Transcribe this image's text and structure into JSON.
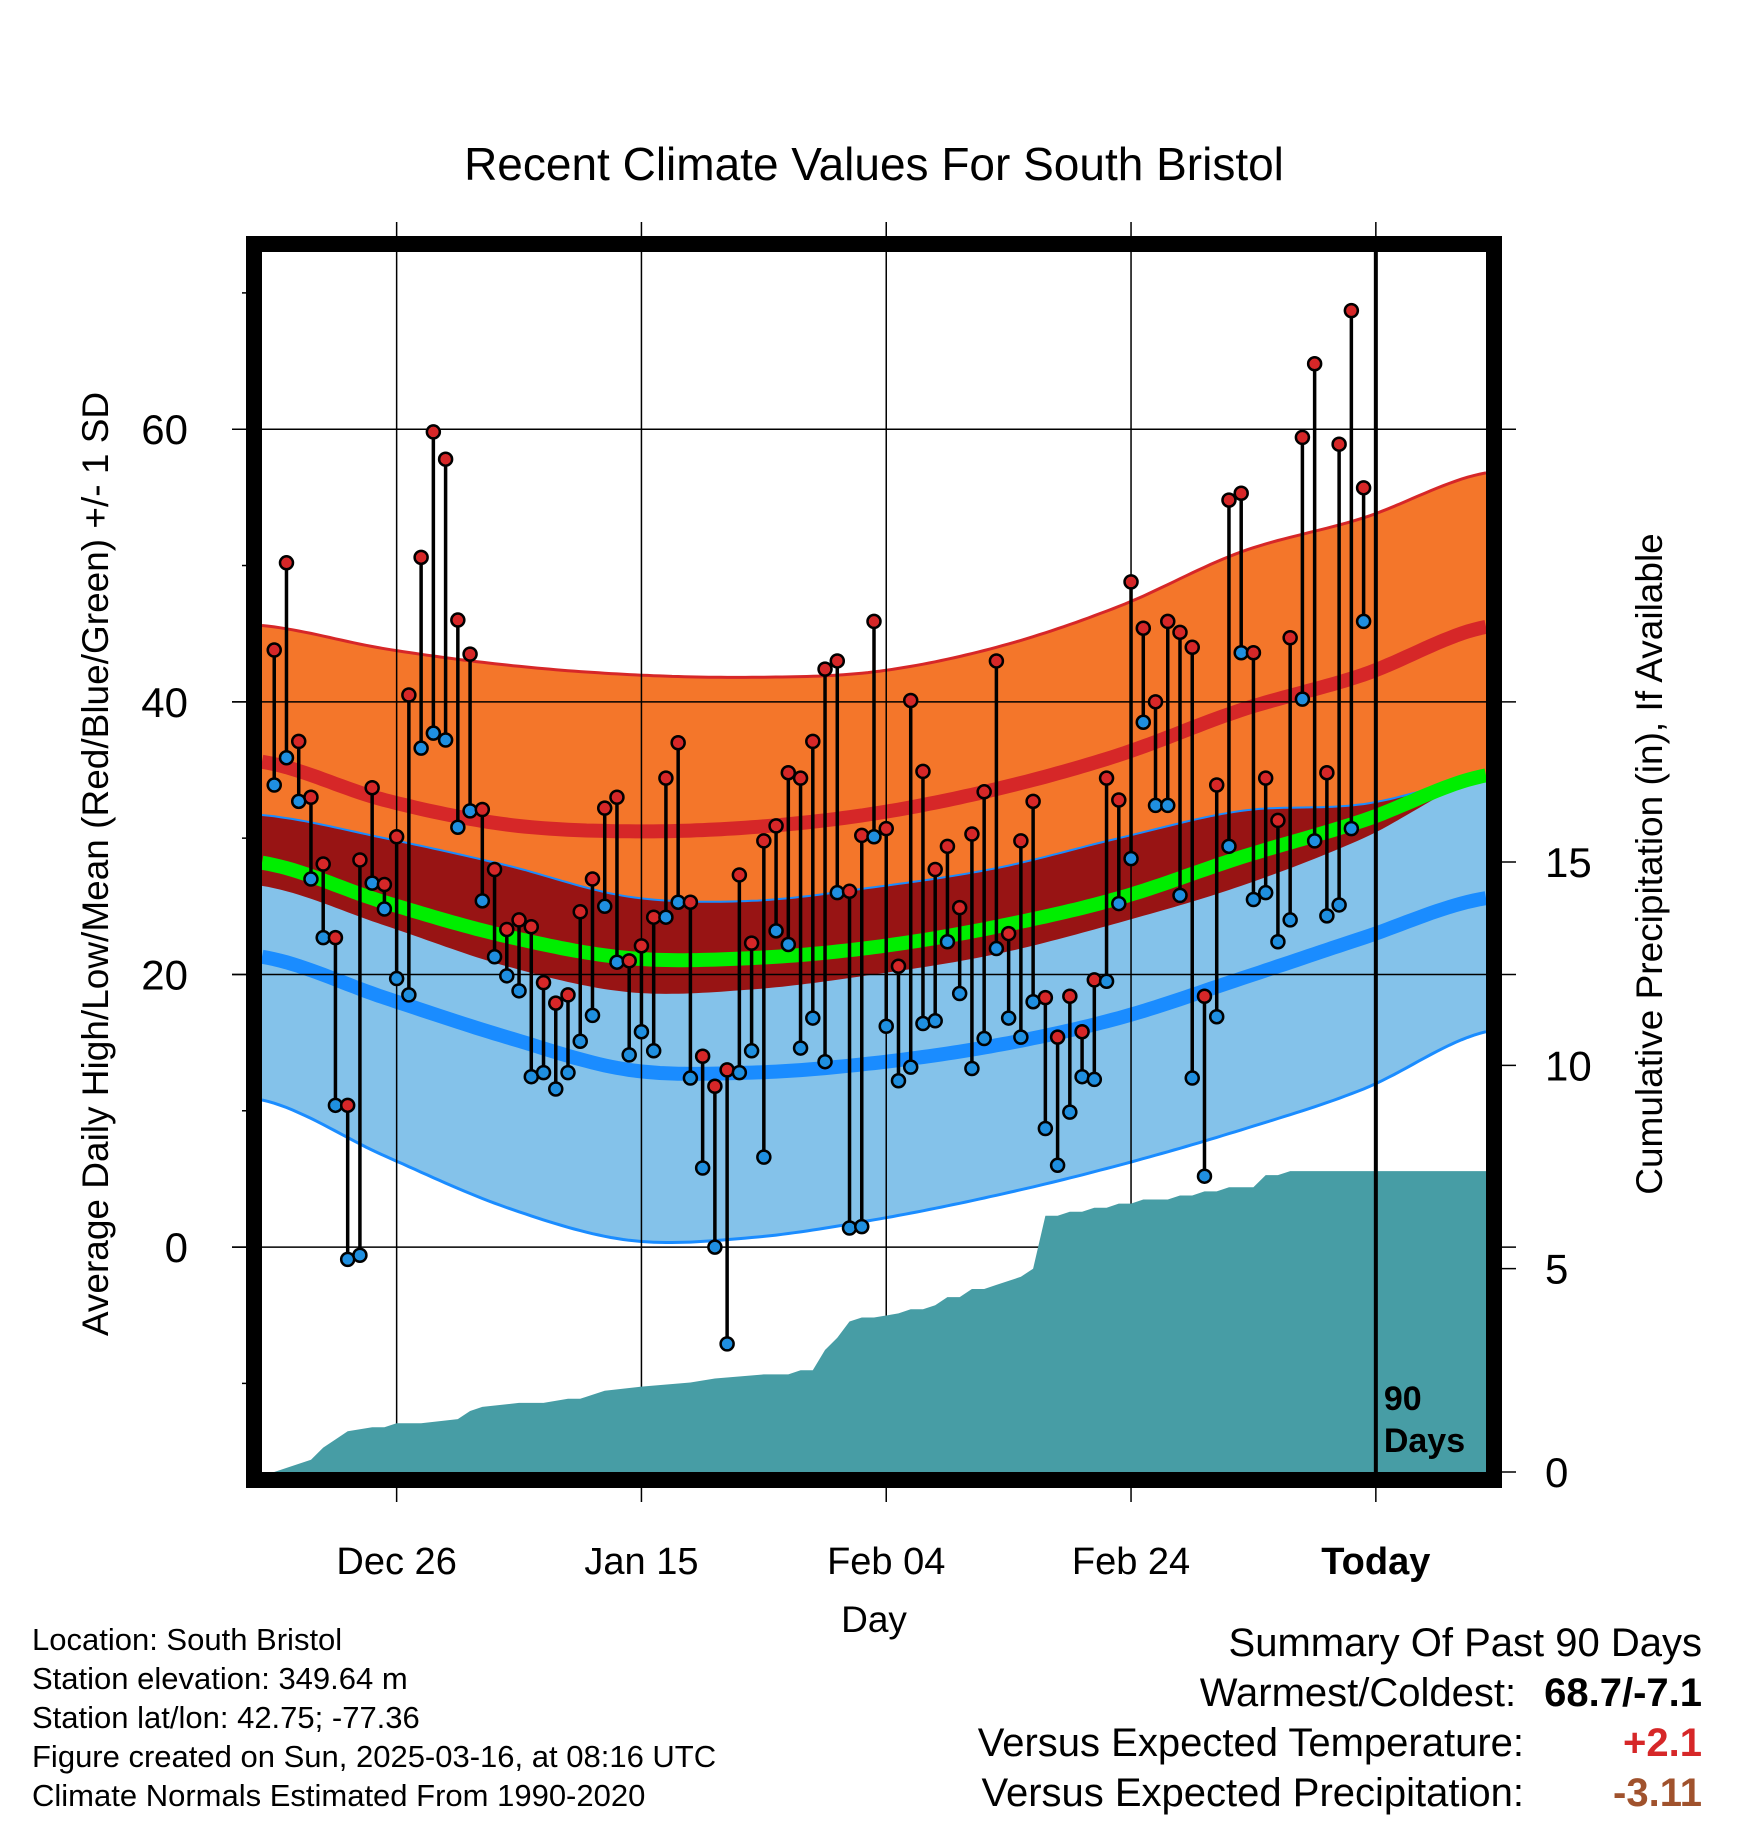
{
  "chart_data": {
    "type": "line",
    "title": "Recent Climate Values For South Bristol",
    "xlabel": "Day",
    "ylabel": "Average Daily High/Low/Mean (Red/Blue/Green) +/- 1 SD",
    "y2label": "Cumulative Precipitation (in), If Available",
    "x_ticks": [
      "Dec 26",
      "Jan 15",
      "Feb 04",
      "Feb 24",
      "Today"
    ],
    "x_tick_days": [
      10,
      30,
      50,
      70,
      90
    ],
    "xlim": [
      -1,
      99
    ],
    "ylim": [
      -16.5,
      73
    ],
    "y_ticks": [
      "0",
      "20",
      "40",
      "60"
    ],
    "y2lim": [
      0,
      30
    ],
    "y2_ticks": [
      "0",
      "5",
      "10",
      "15"
    ],
    "today_label": "90 Days",
    "grid": true,
    "normals": {
      "days": [
        -1,
        9,
        19,
        29,
        39,
        49,
        59,
        69,
        79,
        89,
        99
      ],
      "high_mean": [
        35.6,
        32.8,
        31.0,
        30.5,
        30.8,
        31.8,
        33.6,
        36.1,
        39.4,
        42.0,
        45.5
      ],
      "high_plus_sd": [
        45.6,
        43.9,
        42.7,
        42.0,
        41.8,
        42.2,
        44.0,
        47.0,
        51.0,
        53.5,
        56.8
      ],
      "high_minus_sd": [
        26.5,
        23.6,
        20.6,
        18.7,
        18.9,
        20.0,
        21.5,
        23.8,
        26.5,
        30.0,
        34.5
      ],
      "low_mean": [
        21.3,
        18.3,
        15.4,
        13.0,
        12.8,
        13.5,
        14.8,
        16.8,
        19.7,
        22.7,
        25.6
      ],
      "low_plus_sd": [
        31.7,
        30.0,
        28.0,
        25.7,
        25.4,
        26.4,
        27.8,
        30.0,
        32.0,
        32.5,
        34.5
      ],
      "low_minus_sd": [
        10.8,
        6.7,
        2.9,
        0.5,
        0.7,
        2.0,
        3.8,
        6.0,
        8.6,
        11.6,
        15.8
      ],
      "mean": [
        28.2,
        25.3,
        22.8,
        21.2,
        21.2,
        22.0,
        23.5,
        25.6,
        28.6,
        31.3,
        34.6
      ]
    },
    "observed": {
      "days": [
        0,
        1,
        2,
        3,
        4,
        5,
        6,
        7,
        8,
        9,
        10,
        11,
        12,
        13,
        14,
        15,
        16,
        17,
        18,
        19,
        20,
        21,
        22,
        23,
        24,
        25,
        26,
        27,
        28,
        29,
        30,
        31,
        32,
        33,
        34,
        35,
        36,
        37,
        38,
        39,
        40,
        41,
        42,
        43,
        44,
        45,
        46,
        47,
        48,
        49,
        50,
        51,
        52,
        53,
        54,
        55,
        56,
        57,
        58,
        59,
        60,
        61,
        62,
        63,
        64,
        65,
        66,
        67,
        68,
        69,
        70,
        71,
        72,
        73,
        74,
        75,
        76,
        77,
        78,
        79,
        80,
        81,
        82,
        83,
        84,
        85,
        86,
        87,
        88,
        89
      ],
      "high": [
        43.8,
        50.2,
        37.1,
        33.0,
        28.1,
        22.7,
        10.4,
        28.4,
        33.7,
        26.6,
        30.1,
        40.5,
        50.6,
        59.8,
        57.8,
        46.0,
        43.5,
        32.1,
        27.7,
        23.3,
        24.0,
        23.5,
        19.4,
        17.9,
        18.5,
        24.6,
        27.0,
        32.2,
        33.0,
        21.0,
        22.1,
        24.2,
        34.4,
        37.0,
        25.3,
        14.0,
        11.8,
        13.0,
        27.3,
        22.3,
        29.8,
        30.9,
        34.8,
        34.4,
        37.1,
        42.4,
        43.0,
        26.1,
        30.2,
        45.9,
        30.7,
        20.6,
        40.1,
        34.9,
        27.7,
        29.4,
        24.9,
        30.3,
        33.4,
        43.0,
        23.0,
        29.8,
        32.7,
        18.3,
        15.4,
        18.4,
        15.8,
        19.6,
        34.4,
        32.8,
        48.8,
        45.4,
        40.0,
        45.9,
        45.1,
        44.0,
        18.4,
        33.9,
        54.8,
        55.3,
        43.6,
        34.4,
        31.3,
        44.7,
        59.4,
        64.8,
        34.8,
        58.9,
        68.7,
        55.7
      ],
      "low": [
        33.9,
        35.9,
        32.7,
        27.0,
        22.7,
        10.4,
        -0.9,
        -0.6,
        26.7,
        24.8,
        19.7,
        18.5,
        36.6,
        37.7,
        37.2,
        30.8,
        32.0,
        25.4,
        21.3,
        19.9,
        18.8,
        12.5,
        12.8,
        11.6,
        12.8,
        15.1,
        17.0,
        25.0,
        20.9,
        14.1,
        15.8,
        14.4,
        24.2,
        25.3,
        12.4,
        5.8,
        0.0,
        -7.1,
        12.8,
        14.4,
        6.6,
        23.2,
        22.2,
        14.6,
        16.8,
        13.6,
        26.0,
        1.4,
        1.5,
        30.1,
        16.2,
        12.2,
        13.2,
        16.4,
        16.6,
        22.4,
        18.6,
        13.1,
        15.3,
        21.9,
        16.8,
        15.4,
        18.0,
        8.7,
        6.0,
        9.9,
        12.5,
        12.3,
        19.5,
        25.2,
        28.5,
        38.5,
        32.4,
        32.4,
        25.8,
        12.4,
        5.2,
        16.9,
        29.4,
        43.6,
        25.5,
        26.0,
        22.4,
        24.0,
        40.2,
        29.8,
        24.3,
        25.1,
        30.7,
        45.9
      ]
    },
    "precip_cumulative": {
      "days": [
        0,
        3,
        4,
        5,
        6,
        8,
        9,
        10,
        12,
        15,
        16,
        17,
        20,
        22,
        24,
        25,
        26,
        27,
        30,
        34,
        36,
        40,
        42,
        43,
        44,
        45,
        46,
        47,
        48,
        49,
        51,
        52,
        53,
        54,
        55,
        56,
        57,
        58,
        59,
        60,
        61,
        62,
        63,
        64,
        65,
        66,
        67,
        68,
        69,
        70,
        71,
        72,
        73,
        74,
        75,
        76,
        77,
        78,
        79,
        80,
        81,
        82,
        83,
        84,
        85,
        86,
        87,
        88,
        89,
        91,
        99
      ],
      "values": [
        0,
        0.3,
        0.6,
        0.8,
        1.0,
        1.1,
        1.1,
        1.2,
        1.2,
        1.3,
        1.5,
        1.6,
        1.7,
        1.7,
        1.8,
        1.8,
        1.9,
        2.0,
        2.1,
        2.2,
        2.3,
        2.4,
        2.4,
        2.5,
        2.5,
        3.0,
        3.3,
        3.7,
        3.8,
        3.8,
        3.9,
        4.0,
        4.0,
        4.1,
        4.3,
        4.3,
        4.5,
        4.5,
        4.6,
        4.7,
        4.8,
        5.0,
        6.3,
        6.3,
        6.4,
        6.4,
        6.5,
        6.5,
        6.6,
        6.6,
        6.7,
        6.7,
        6.7,
        6.8,
        6.8,
        6.9,
        6.9,
        7.0,
        7.0,
        7.0,
        7.3,
        7.3,
        7.4,
        7.4,
        7.4,
        7.4,
        7.4,
        7.4,
        7.4,
        7.4,
        7.4
      ]
    },
    "colors": {
      "high_band": "#f4762a",
      "high_mean": "#d62728",
      "low_band": "#84c2ea",
      "low_mean": "#1a8cff",
      "overlap_band": "#981414",
      "mean": "#00ee00",
      "precip": "#479da5",
      "high_dot": "#d62728",
      "low_dot": "#1f8fe0"
    }
  },
  "meta": {
    "location": "Location: South Bristol",
    "elevation": "Station elevation: 349.64 m",
    "latlon": "Station lat/lon: 42.75; -77.36",
    "created": "Figure created on Sun, 2025-03-16, at 08:16 UTC",
    "normals": "Climate Normals Estimated From 1990-2020"
  },
  "summary": {
    "title": "Summary Of Past 90 Days",
    "warmest_label": "Warmest/Coldest:",
    "warmest_value": "68.7/-7.1",
    "temp_label": "Versus Expected Temperature:",
    "temp_value": "+2.1",
    "temp_color": "#d62728",
    "precip_label": "Versus Expected Precipitation:",
    "precip_value": "-3.11",
    "precip_color": "#a0522d"
  }
}
